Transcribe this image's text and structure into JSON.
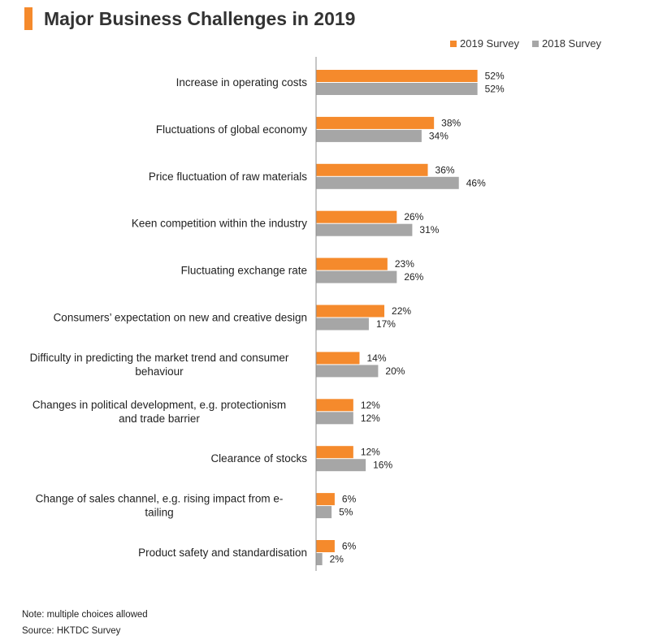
{
  "title": "Major Business Challenges in 2019",
  "colors": {
    "accent": "#f58a2c",
    "series_2019": "#f58a2c",
    "series_2018": "#a6a6a6"
  },
  "notes": {
    "note": "Note: multiple choices allowed",
    "source": "Source: HKTDC Survey"
  },
  "chart_data": {
    "type": "bar",
    "orientation": "horizontal",
    "title": "Major Business Challenges in 2019",
    "categories": [
      [
        "Increase in operating costs"
      ],
      [
        "Fluctuations of global economy"
      ],
      [
        "Price fluctuation of raw materials"
      ],
      [
        "Keen competition within the industry"
      ],
      [
        "Fluctuating exchange rate"
      ],
      [
        "Consumers’ expectation on new and creative design"
      ],
      [
        "Difficulty in predicting the market trend and consumer",
        "behaviour"
      ],
      [
        "Changes in political development, e.g. protectionism",
        "and trade barrier"
      ],
      [
        "Clearance of stocks"
      ],
      [
        "Change of sales channel, e.g. rising impact from e-",
        "tailing"
      ],
      [
        "Product safety and standardisation"
      ]
    ],
    "series": [
      {
        "name": "2019 Survey",
        "color": "#f58a2c",
        "values": [
          52,
          38,
          36,
          26,
          23,
          22,
          14,
          12,
          12,
          6,
          6
        ]
      },
      {
        "name": "2018 Survey",
        "color": "#a6a6a6",
        "values": [
          52,
          34,
          46,
          31,
          26,
          17,
          20,
          12,
          16,
          5,
          2
        ]
      }
    ],
    "value_suffix": "%",
    "legend_position": "top-right",
    "grid": false,
    "xlim": [
      0,
      100
    ]
  }
}
